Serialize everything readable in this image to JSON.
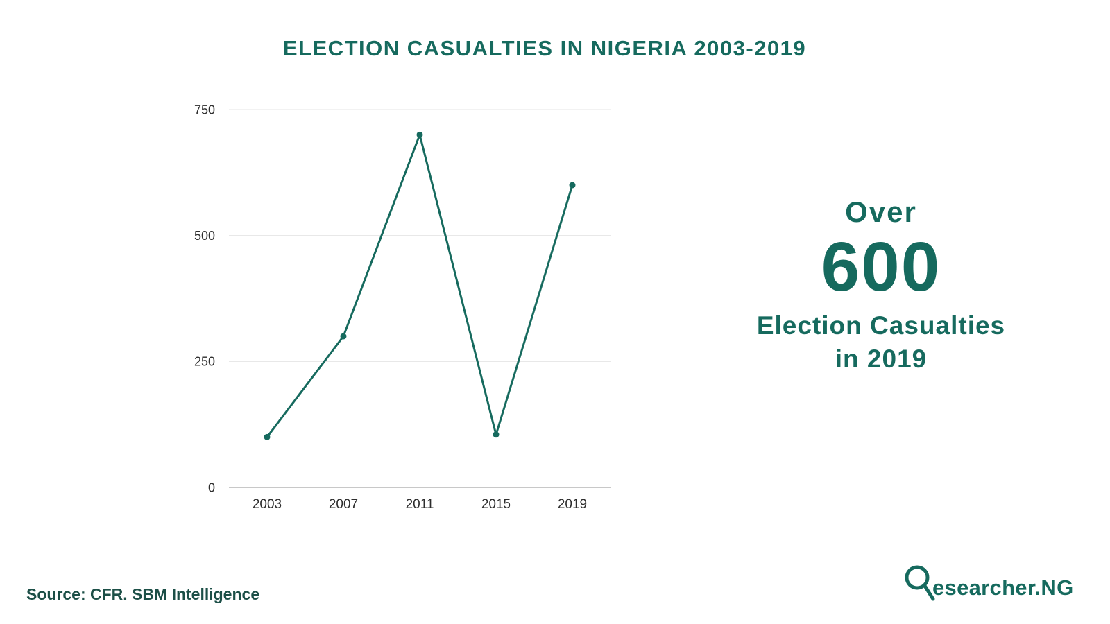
{
  "page": {
    "title": "ELECTION CASUALTIES IN NIGERIA 2003-2019",
    "source": "Source: CFR. SBM Intelligence",
    "accent_color": "#166a5e"
  },
  "callout": {
    "line1": "Over",
    "line2": "600",
    "line3": "Election Casualties",
    "line4": "in 2019"
  },
  "logo": {
    "icon": "magnifier-r-icon",
    "text": "esearcher.NG"
  },
  "chart_data": {
    "type": "line",
    "categories": [
      "2003",
      "2007",
      "2011",
      "2015",
      "2019"
    ],
    "values": [
      100,
      300,
      700,
      105,
      600
    ],
    "title": "ELECTION CASUALTIES IN NIGERIA 2003-2019",
    "xlabel": "",
    "ylabel": "",
    "ylim": [
      0,
      750
    ],
    "yticks": [
      0,
      250,
      500,
      750
    ],
    "grid": true,
    "legend": "none",
    "line_color": "#166a5e",
    "marker": "circle",
    "axis_color": "#b5b5b5",
    "grid_color": "#e4e4e4",
    "tick_label_color": "#2d2d2d"
  }
}
